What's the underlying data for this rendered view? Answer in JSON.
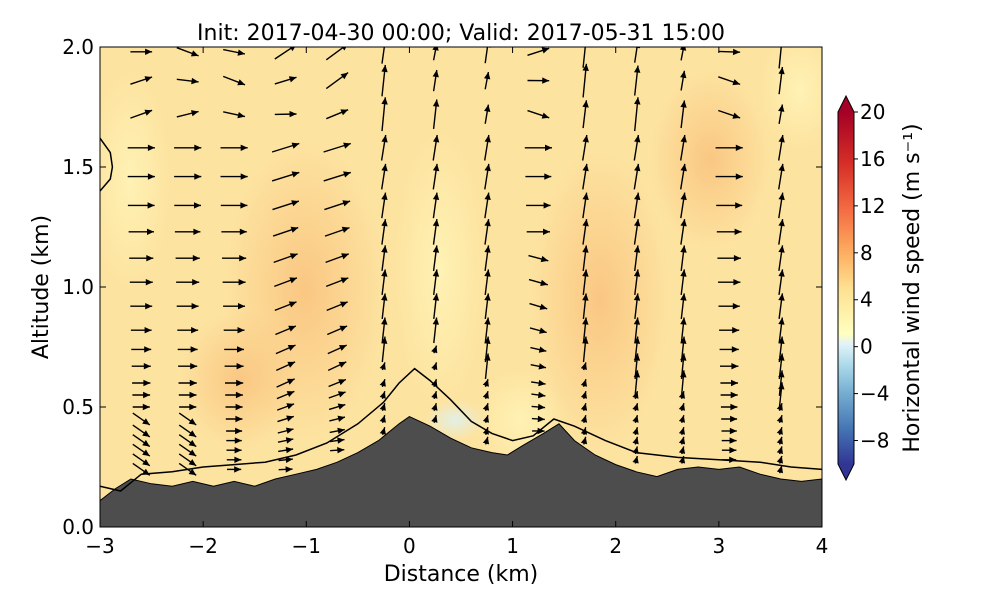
{
  "chart_data": {
    "type": "contour",
    "title": "Init: 2017-04-30 00:00; Valid: 2017-05-31 15:00",
    "xlabel": "Distance (km)",
    "ylabel": "Altitude (km)",
    "xlim": [
      -3,
      4
    ],
    "ylim": [
      0,
      2
    ],
    "xticks": [
      -3,
      -2,
      -1,
      0,
      1,
      2,
      3,
      4
    ],
    "xtick_labels": [
      "−3",
      "−2",
      "−1",
      "0",
      "1",
      "2",
      "3",
      "4"
    ],
    "yticks": [
      0,
      0.5,
      1,
      1.5,
      2
    ],
    "ytick_labels": [
      "0.0",
      "0.5",
      "1.0",
      "1.5",
      "2.0"
    ],
    "terrain_profile": {
      "x": [
        -3,
        -2.85,
        -2.7,
        -2.5,
        -2.3,
        -2.1,
        -1.9,
        -1.7,
        -1.5,
        -1.3,
        -1.1,
        -0.9,
        -0.7,
        -0.5,
        -0.3,
        -0.1,
        0.0,
        0.2,
        0.4,
        0.6,
        0.8,
        0.95,
        1.1,
        1.3,
        1.45,
        1.6,
        1.8,
        2.0,
        2.2,
        2.4,
        2.6,
        2.8,
        3.0,
        3.2,
        3.4,
        3.6,
        3.8,
        4.0
      ],
      "y": [
        0.11,
        0.16,
        0.2,
        0.18,
        0.17,
        0.19,
        0.17,
        0.19,
        0.17,
        0.2,
        0.22,
        0.24,
        0.27,
        0.31,
        0.36,
        0.43,
        0.46,
        0.42,
        0.37,
        0.33,
        0.31,
        0.3,
        0.34,
        0.39,
        0.43,
        0.36,
        0.3,
        0.26,
        0.23,
        0.21,
        0.24,
        0.25,
        0.24,
        0.25,
        0.22,
        0.2,
        0.19,
        0.2
      ]
    },
    "contour_line_upper": {
      "x": [
        -3,
        -2.8,
        -2.6,
        -2.3,
        -2.0,
        -1.7,
        -1.4,
        -1.1,
        -0.8,
        -0.5,
        -0.25,
        -0.1,
        0.05,
        0.2,
        0.4,
        0.6,
        0.8,
        1.0,
        1.2,
        1.4,
        1.6,
        1.9,
        2.2,
        2.6,
        3.0,
        3.4,
        3.7,
        4.0
      ],
      "y": [
        0.17,
        0.15,
        0.22,
        0.23,
        0.25,
        0.26,
        0.27,
        0.3,
        0.35,
        0.43,
        0.52,
        0.6,
        0.66,
        0.61,
        0.53,
        0.44,
        0.39,
        0.36,
        0.38,
        0.45,
        0.42,
        0.36,
        0.31,
        0.29,
        0.28,
        0.27,
        0.25,
        0.24
      ]
    },
    "contour_line_left": {
      "x": [
        -3,
        -2.9,
        -2.88,
        -2.9,
        -3
      ],
      "y": [
        1.4,
        1.45,
        1.5,
        1.56,
        1.62
      ]
    },
    "colorbar": {
      "label": "Horizontal wind speed (m s⁻¹)",
      "range": [
        -10,
        20
      ],
      "ticks": [
        -8,
        -4,
        0,
        4,
        8,
        12,
        16,
        20
      ],
      "tick_labels": [
        "−8",
        "−4",
        "0",
        "4",
        "8",
        "12",
        "16",
        "20"
      ],
      "colormap": "RdYlBu_r"
    },
    "wind_vector_columns_km": [
      -2.6,
      -2.15,
      -1.7,
      -1.2,
      -0.7,
      -0.25,
      0.25,
      0.75,
      1.25,
      1.7,
      2.2,
      2.65,
      3.1,
      3.6
    ],
    "wind_vector_rows_km": [
      0.2,
      0.24,
      0.28,
      0.32,
      0.36,
      0.4,
      0.45,
      0.5,
      0.55,
      0.6,
      0.67,
      0.74,
      0.82,
      0.92,
      1.02,
      1.12,
      1.23,
      1.34,
      1.46,
      1.58,
      1.72,
      1.86,
      1.98
    ]
  }
}
